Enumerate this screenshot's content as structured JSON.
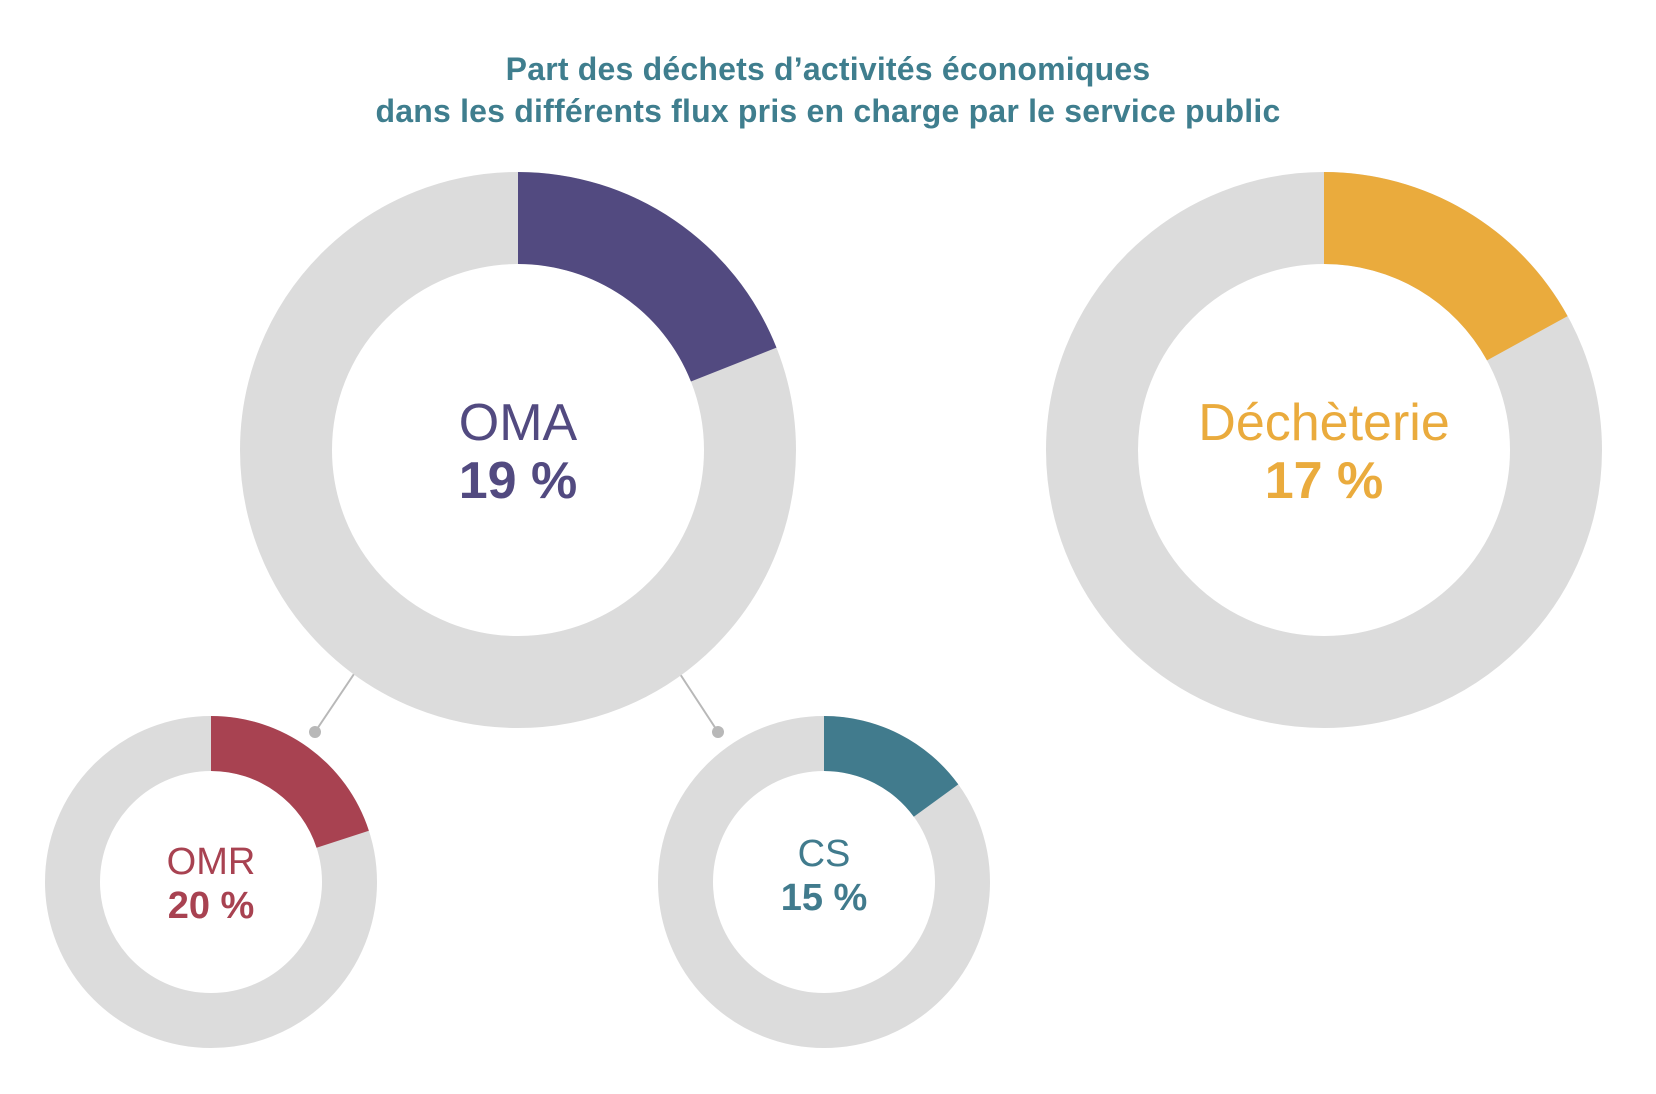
{
  "title_line1": "Part des déchets d’activités économiques",
  "title_line2": "dans les différents flux pris en charge par le service public",
  "colors": {
    "title": "#3f7e8e",
    "track": "#dcdcdc",
    "connector": "#b8b8b8"
  },
  "chart_data": [
    {
      "type": "pie",
      "style": "donut",
      "name": "OMA",
      "value_label": "19 %",
      "value": 19,
      "color": "#524a80"
    },
    {
      "type": "pie",
      "style": "donut",
      "name": "OMR",
      "value_label": "20 %",
      "value": 20,
      "color": "#a84251"
    },
    {
      "type": "pie",
      "style": "donut",
      "name": "CS",
      "value_label": "15 %",
      "value": 15,
      "color": "#417b8d"
    },
    {
      "type": "pie",
      "style": "donut",
      "name": "Déchèterie",
      "value_label": "17 %",
      "value": 17,
      "color": "#eaab3d"
    }
  ]
}
